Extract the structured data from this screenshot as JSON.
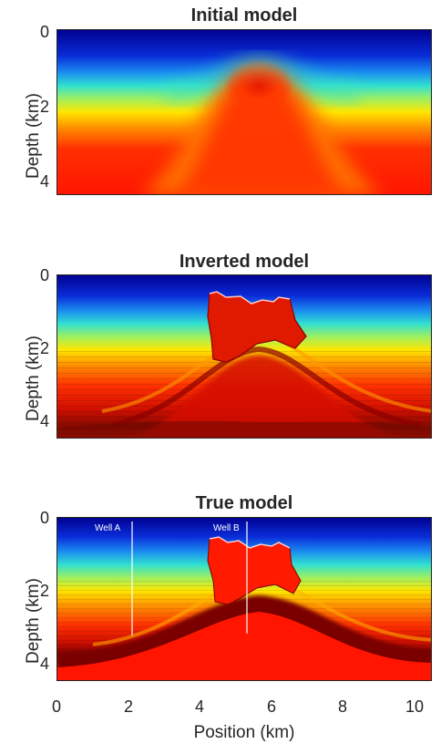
{
  "panels": {
    "initial": {
      "title": "Initial model"
    },
    "inverted": {
      "title": "Inverted model"
    },
    "true": {
      "title": "True model",
      "wells": [
        "Well A",
        "Well B"
      ]
    }
  },
  "axes": {
    "ylabel": "Depth (km)",
    "xlabel": "Position (km)",
    "yticks": [
      "0",
      "2",
      "4"
    ],
    "xticks": [
      "0",
      "2",
      "4",
      "6",
      "8",
      "10"
    ]
  },
  "colors": {
    "low": "#00008f",
    "mid": "#2fe0c0",
    "high": "#ff1a00",
    "dark": "#7a0000"
  }
}
